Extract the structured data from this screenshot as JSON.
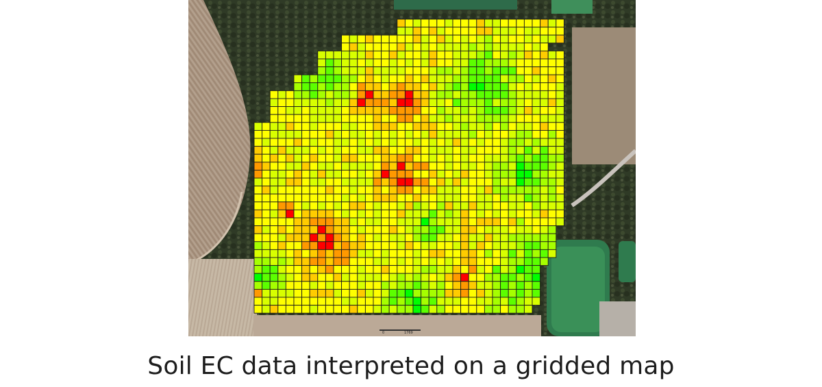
{
  "caption": "Soil EC data interpreted on a gridded map",
  "map": {
    "scale_start_label": "0",
    "scale_end_label": "1769",
    "legend_colors": {
      "low": "#ff0000",
      "mid_low": "#ff9900",
      "mid": "#ffff00",
      "mid_high": "#a6ff00",
      "high": "#00ff00"
    }
  }
}
